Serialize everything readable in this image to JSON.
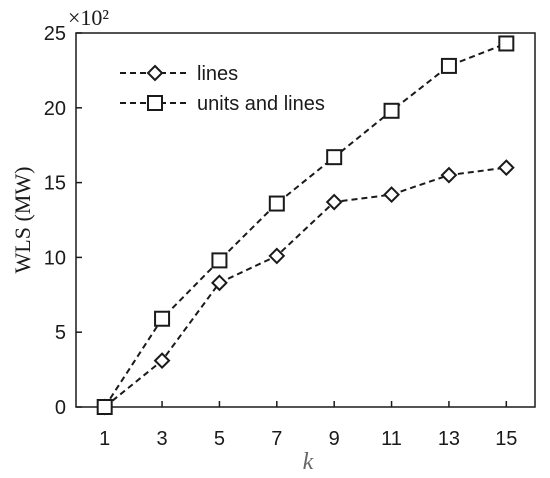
{
  "chart_data": {
    "type": "line",
    "x": [
      1,
      3,
      5,
      7,
      9,
      11,
      13,
      15
    ],
    "xlabel": "k",
    "ylabel": "WLS (MW)",
    "y_multiplier": "×10²",
    "xticks": [
      "1",
      "3",
      "5",
      "7",
      "9",
      "11",
      "13",
      "15"
    ],
    "yticks": [
      "0",
      "5",
      "10",
      "15",
      "20",
      "25"
    ],
    "ylim": [
      0,
      25
    ],
    "xlim": [
      0,
      16
    ],
    "grid": false,
    "legend_position": "top-left",
    "series": [
      {
        "name": "lines",
        "marker": "diamond",
        "line_style": "dashed",
        "color": "#1a1a1a",
        "values": [
          0,
          3.1,
          8.3,
          10.1,
          13.7,
          14.2,
          15.5,
          16.0
        ]
      },
      {
        "name": "units and lines",
        "marker": "square",
        "line_style": "dashed",
        "color": "#1a1a1a",
        "values": [
          0,
          5.9,
          9.8,
          13.6,
          16.7,
          19.8,
          22.8,
          24.3
        ]
      }
    ]
  }
}
